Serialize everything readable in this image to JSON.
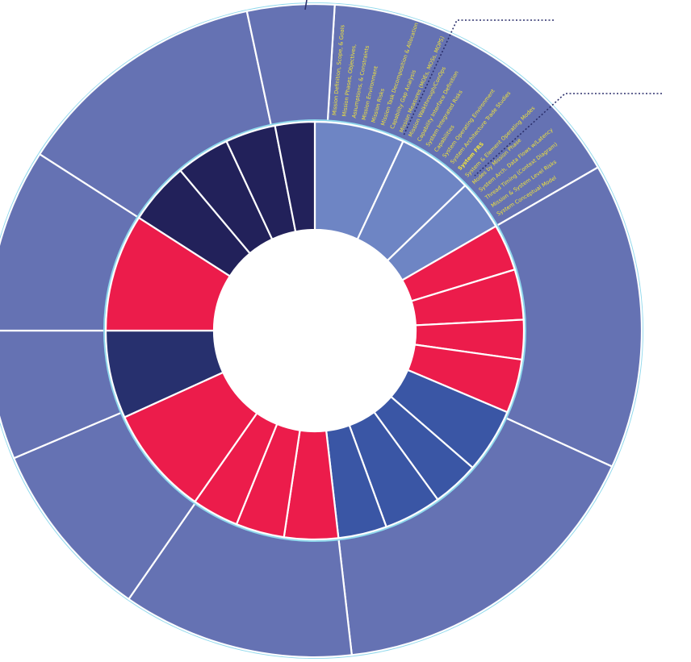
{
  "labels": [
    "Mission Definition, Scope, & Goals",
    "Mission Phases, Objectives,",
    "Assumptions, & Constraints",
    "Mission Environment",
    "Mission Risks",
    "Mission Task Decomposition & Allocation",
    "Capability Gap Analysis",
    "Mission Measures (MOEs, MOSs, MOPS)",
    "Mission Walkthrough/ConOps",
    "Capability Interface Definition",
    "System Integrated Risks",
    "Capabilities",
    "System Operating Environment",
    "System Architecture Trade Studies",
    "System FRS",
    "System & Element Operating Modes",
    "Modes by Mission Phase",
    "System Arch. Data Flows w/Latency",
    "Thread Timing (Context Diagram)",
    "Mission & System Level Risks",
    "System Conceptual Model"
  ]
}
